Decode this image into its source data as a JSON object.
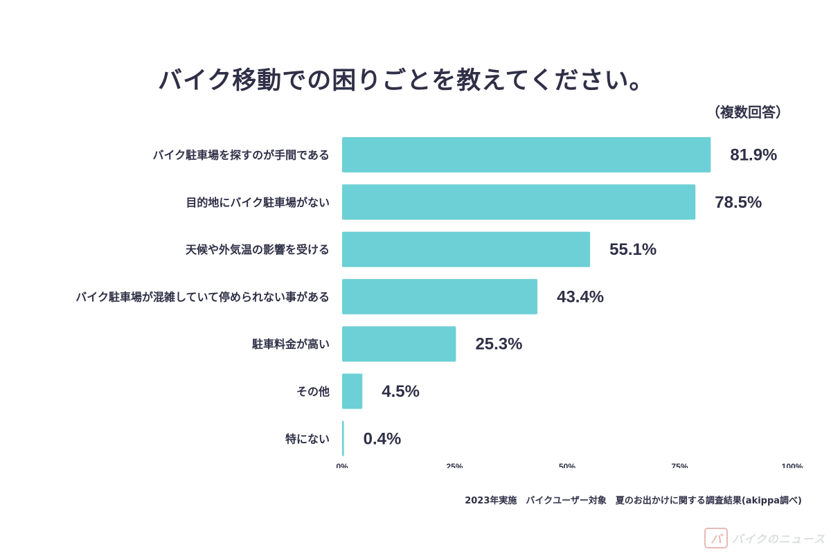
{
  "title": "バイク移動での困りごとを教えてください。",
  "subtitle": "（複数回答）",
  "source": "2023年実施　バイクユーザー対象　夏のお出かけに関する調査結果(akippa調べ)",
  "logo_text": "バイクのニュース",
  "colors": {
    "bar": "#6dd0d6",
    "text": "#2f3047",
    "background": "#ffffff"
  },
  "chart_data": {
    "type": "bar",
    "orientation": "horizontal",
    "categories": [
      "バイク駐車場を探すのが手間である",
      "目的地にバイク駐車場がない",
      "天候や外気温の影響を受ける",
      "バイク駐車場が混雑していて停められない事がある",
      "駐車料金が高い",
      "その他",
      "特にない"
    ],
    "values": [
      81.9,
      78.5,
      55.1,
      43.4,
      25.3,
      4.5,
      0.4
    ],
    "value_labels": [
      "81.9%",
      "78.5%",
      "55.1%",
      "43.4%",
      "25.3%",
      "4.5%",
      "0.4%"
    ],
    "xlim": [
      0,
      100
    ],
    "x_ticks": [
      "0%",
      "25%",
      "50%",
      "75%",
      "100%"
    ],
    "grid": false,
    "legend": "none"
  }
}
